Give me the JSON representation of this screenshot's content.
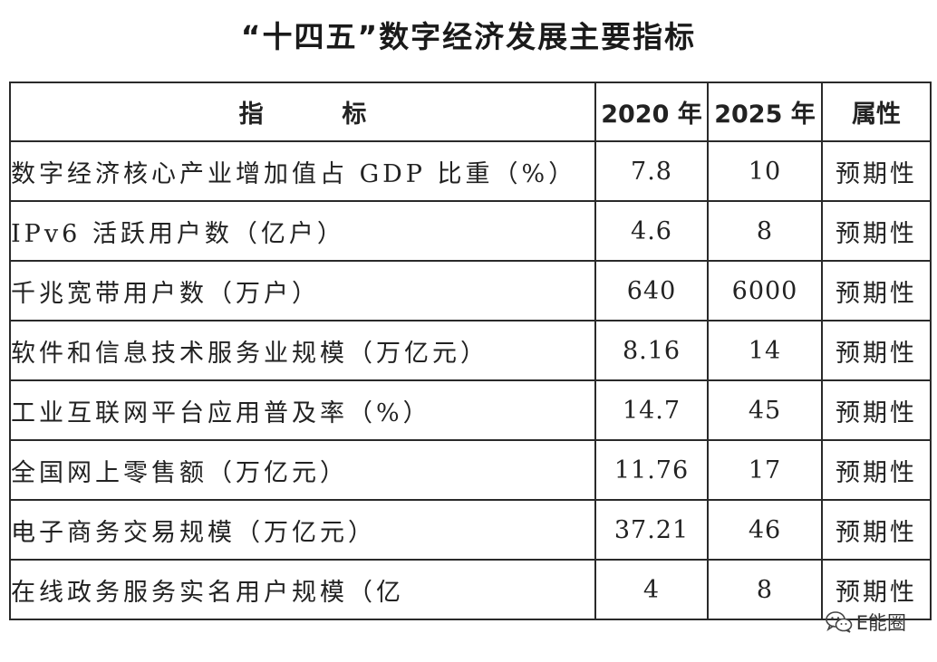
{
  "title": "“十四五”数字经济发展主要指标",
  "table": {
    "headers": {
      "indicator_a": "指",
      "indicator_b": "标",
      "y2020": "2020 年",
      "y2025": "2025 年",
      "attribute": "属性"
    },
    "rows": [
      {
        "name": "数字经济核心产业增加值占 GDP 比重（%）",
        "v2020": "7.8",
        "v2025": "10",
        "attr": "预期性"
      },
      {
        "name": "IPv6 活跃用户数（亿户）",
        "v2020": "4.6",
        "v2025": "8",
        "attr": "预期性"
      },
      {
        "name": "千兆宽带用户数（万户）",
        "v2020": "640",
        "v2025": "6000",
        "attr": "预期性"
      },
      {
        "name": "软件和信息技术服务业规模（万亿元）",
        "v2020": "8.16",
        "v2025": "14",
        "attr": "预期性"
      },
      {
        "name": "工业互联网平台应用普及率（%）",
        "v2020": "14.7",
        "v2025": "45",
        "attr": "预期性"
      },
      {
        "name": "全国网上零售额（万亿元）",
        "v2020": "11.76",
        "v2025": "17",
        "attr": "预期性"
      },
      {
        "name": "电子商务交易规模（万亿元）",
        "v2020": "37.21",
        "v2025": "46",
        "attr": "预期性"
      },
      {
        "name": "在线政务服务实名用户规模（亿",
        "v2020": "4",
        "v2025": "8",
        "attr": "预期性"
      }
    ]
  },
  "watermark": {
    "text": "E能圈",
    "icon": "wechat-icon"
  }
}
